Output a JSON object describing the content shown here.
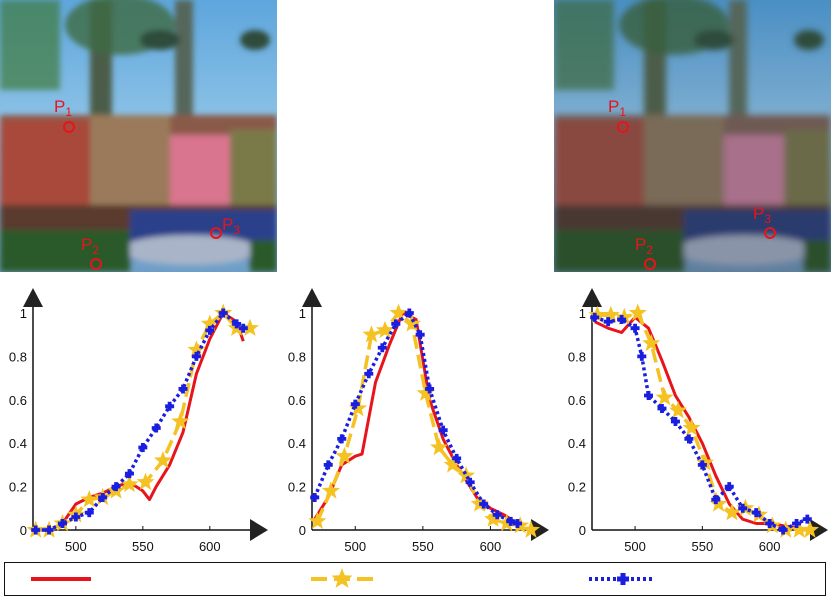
{
  "photos": [
    {
      "points": [
        {
          "label": "P",
          "sub": "1"
        },
        {
          "label": "P",
          "sub": "2"
        },
        {
          "label": "P",
          "sub": "3"
        }
      ]
    },
    {
      "points": [
        {
          "label": "P",
          "sub": "1"
        },
        {
          "label": "P",
          "sub": "2"
        },
        {
          "label": "P",
          "sub": "3"
        }
      ]
    }
  ],
  "colors": {
    "series_solid": "#e8141c",
    "series_star": "#f5c223",
    "series_dotted": "#1a1ee0",
    "marker": "#e8141c"
  },
  "chart_data": [
    {
      "type": "line",
      "xlim": [
        468,
        630
      ],
      "ylim": [
        0,
        1
      ],
      "xticks": [
        "500",
        "550",
        "600"
      ],
      "yticks": [
        "0",
        "0.2",
        "0.4",
        "0.6",
        "0.8",
        "1"
      ],
      "series": [
        {
          "style": "solid",
          "x": [
            468,
            480,
            490,
            500,
            510,
            520,
            530,
            540,
            550,
            555,
            560,
            570,
            580,
            590,
            600,
            610,
            620,
            625
          ],
          "y": [
            0,
            0,
            0.03,
            0.12,
            0.15,
            0.17,
            0.2,
            0.22,
            0.18,
            0.14,
            0.2,
            0.3,
            0.45,
            0.72,
            0.88,
            1.0,
            0.96,
            0.87
          ]
        },
        {
          "style": "star",
          "x": [
            470,
            480,
            490,
            500,
            510,
            520,
            530,
            540,
            552,
            565,
            578,
            590,
            600,
            610,
            620,
            630
          ],
          "y": [
            0,
            0,
            0.03,
            0.07,
            0.14,
            0.15,
            0.18,
            0.21,
            0.22,
            0.32,
            0.5,
            0.83,
            0.95,
            1.0,
            0.93,
            0.93
          ]
        },
        {
          "style": "dotted",
          "x": [
            470,
            480,
            490,
            500,
            510,
            520,
            530,
            540,
            550,
            560,
            570,
            580,
            590,
            600,
            610,
            620,
            625
          ],
          "y": [
            0,
            0,
            0.03,
            0.06,
            0.08,
            0.15,
            0.2,
            0.26,
            0.38,
            0.47,
            0.57,
            0.65,
            0.8,
            0.92,
            1.0,
            0.95,
            0.93
          ]
        }
      ]
    },
    {
      "type": "line",
      "xlim": [
        468,
        630
      ],
      "ylim": [
        0,
        1
      ],
      "xticks": [
        "500",
        "550",
        "600"
      ],
      "yticks": [
        "0",
        "0.2",
        "0.4",
        "0.6",
        "0.8",
        "1"
      ],
      "series": [
        {
          "style": "solid",
          "x": [
            470,
            480,
            490,
            500,
            505,
            515,
            525,
            535,
            545,
            555,
            565,
            575,
            590,
            600,
            610,
            620,
            625
          ],
          "y": [
            0.05,
            0.15,
            0.3,
            0.34,
            0.35,
            0.68,
            0.85,
            1.0,
            0.97,
            0.6,
            0.42,
            0.3,
            0.15,
            0.1,
            0.07,
            0.03,
            0.02
          ]
        },
        {
          "style": "star",
          "x": [
            472,
            482,
            492,
            502,
            512,
            522,
            532,
            542,
            552,
            562,
            572,
            582,
            592,
            602,
            612,
            622,
            630
          ],
          "y": [
            0.04,
            0.18,
            0.34,
            0.56,
            0.9,
            0.92,
            1.0,
            0.95,
            0.63,
            0.38,
            0.3,
            0.25,
            0.12,
            0.05,
            0.03,
            0.02,
            0.0
          ]
        },
        {
          "style": "dotted",
          "x": [
            470,
            480,
            490,
            500,
            510,
            520,
            530,
            540,
            548,
            555,
            565,
            575,
            585,
            595,
            605,
            615,
            620
          ],
          "y": [
            0.15,
            0.3,
            0.42,
            0.58,
            0.72,
            0.84,
            0.95,
            1.0,
            0.9,
            0.65,
            0.46,
            0.33,
            0.22,
            0.12,
            0.07,
            0.04,
            0.03
          ]
        }
      ]
    },
    {
      "type": "line",
      "xlim": [
        468,
        630
      ],
      "ylim": [
        0,
        1
      ],
      "xticks": [
        "500",
        "550",
        "600"
      ],
      "yticks": [
        "0",
        "0.2",
        "0.4",
        "0.6",
        "0.8",
        "1"
      ],
      "series": [
        {
          "style": "solid",
          "x": [
            470,
            480,
            490,
            500,
            510,
            520,
            530,
            540,
            550,
            560,
            570,
            580,
            590,
            600,
            610,
            620,
            628
          ],
          "y": [
            0.96,
            0.93,
            0.91,
            0.98,
            0.93,
            0.78,
            0.62,
            0.52,
            0.4,
            0.25,
            0.12,
            0.05,
            0.03,
            0.03,
            0.02,
            0.01,
            0.0
          ]
        },
        {
          "style": "star",
          "x": [
            472,
            482,
            492,
            502,
            512,
            522,
            532,
            542,
            552,
            562,
            572,
            582,
            592,
            602,
            612,
            622,
            630
          ],
          "y": [
            0.99,
            0.99,
            0.98,
            1.0,
            0.86,
            0.61,
            0.55,
            0.47,
            0.31,
            0.12,
            0.08,
            0.1,
            0.07,
            0.02,
            0.0,
            0.0,
            0.0
          ]
        },
        {
          "style": "dotted",
          "x": [
            470,
            480,
            490,
            500,
            505,
            510,
            520,
            530,
            540,
            550,
            560,
            570,
            580,
            590,
            600,
            610,
            620,
            628
          ],
          "y": [
            0.98,
            0.96,
            0.97,
            0.93,
            0.8,
            0.62,
            0.56,
            0.5,
            0.42,
            0.3,
            0.14,
            0.2,
            0.1,
            0.08,
            0.03,
            0.0,
            0.03,
            0.05
          ]
        }
      ]
    }
  ]
}
